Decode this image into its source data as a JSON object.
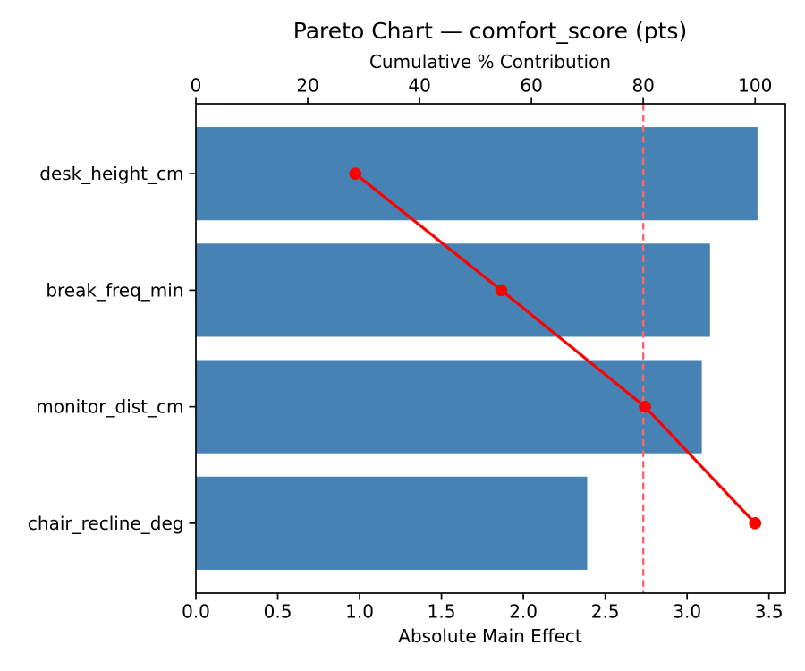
{
  "chart_data": {
    "type": "bar",
    "orientation": "horizontal",
    "title": "Pareto Chart — comfort_score (pts)",
    "top_axis_label": "Cumulative % Contribution",
    "bottom_axis_label": "Absolute Main Effect",
    "categories": [
      "desk_height_cm",
      "break_freq_min",
      "monitor_dist_cm",
      "chair_recline_deg"
    ],
    "bar_values": [
      3.43,
      3.14,
      3.09,
      2.39
    ],
    "cumulative_pct": [
      28.5,
      54.6,
      80.3,
      100.0
    ],
    "threshold_pct": 80,
    "bottom_ticks": [
      "0.0",
      "0.5",
      "1.0",
      "1.5",
      "2.0",
      "2.5",
      "3.0",
      "3.5"
    ],
    "bottom_tick_values": [
      0.0,
      0.5,
      1.0,
      1.5,
      2.0,
      2.5,
      3.0,
      3.5
    ],
    "top_ticks": [
      "0",
      "20",
      "40",
      "60",
      "80",
      "100"
    ],
    "top_tick_values": [
      0,
      20,
      40,
      60,
      80,
      100
    ],
    "bottom_xlim": [
      0,
      3.6
    ],
    "top_xlim": [
      0,
      105.4
    ],
    "grid": false,
    "legend_position": "none",
    "colors": {
      "bar": "#4682B4",
      "cumulative_line": "#FF0000",
      "marker": "#FF0000",
      "threshold_line": "#FF6666",
      "axis": "#000000",
      "text": "#000000",
      "background": "#FFFFFF"
    }
  }
}
